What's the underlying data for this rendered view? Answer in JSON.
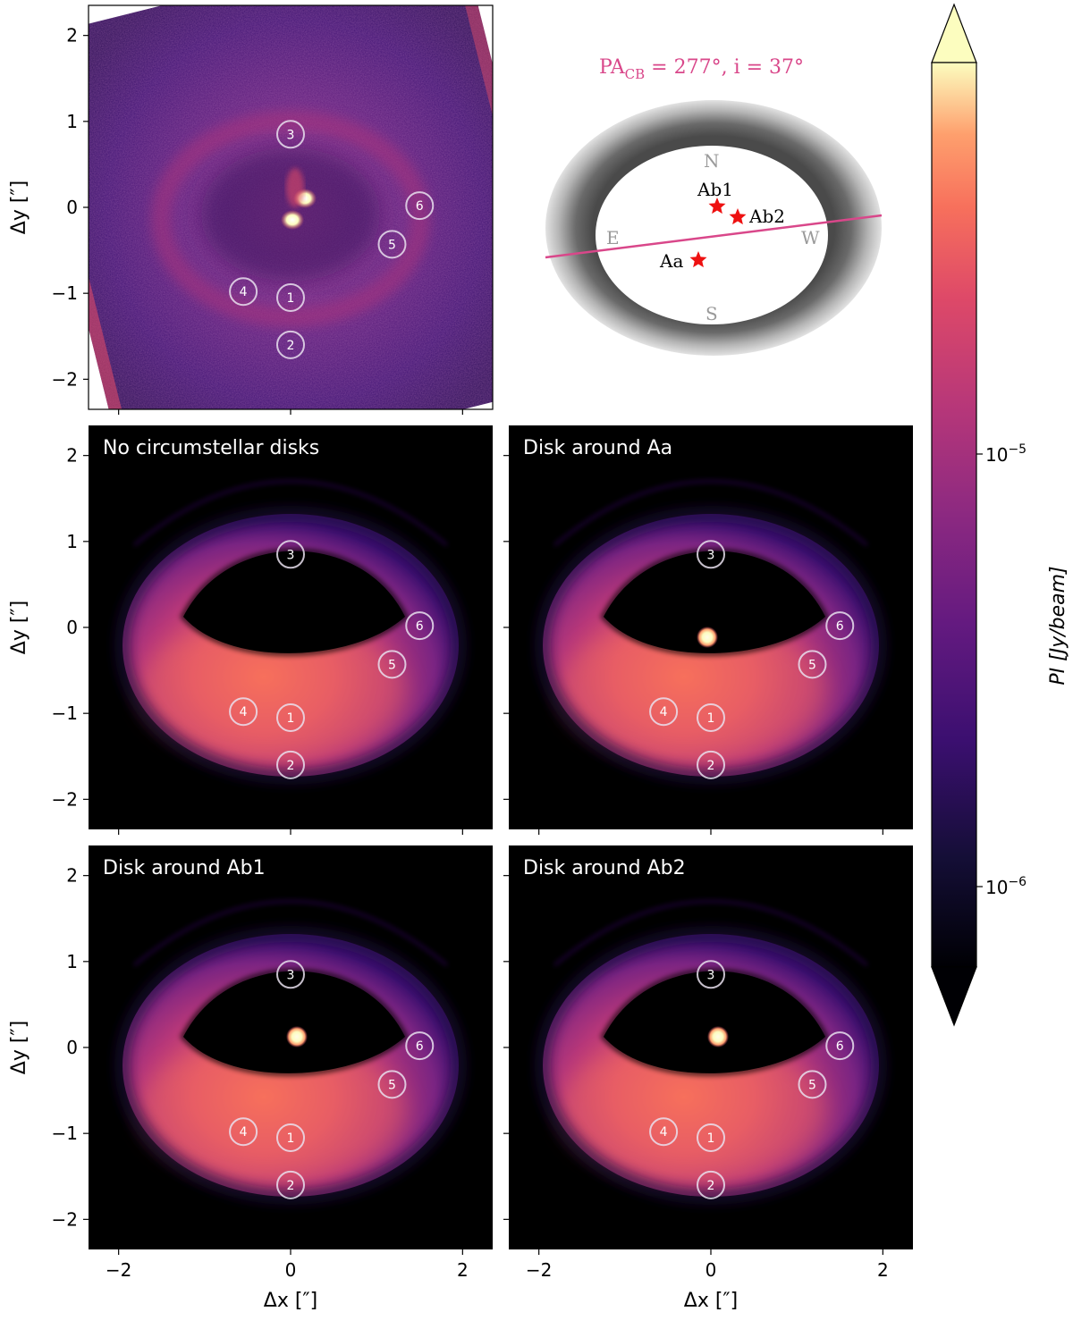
{
  "axes": {
    "x_label": "Δx [″]",
    "y_label": "Δy [″]",
    "x_ticks": [
      "−2",
      "0",
      "2"
    ],
    "y_ticks": [
      "2",
      "1",
      "0",
      "−1",
      "−2"
    ],
    "range": [
      -2.35,
      2.35
    ]
  },
  "panels": {
    "observed": {
      "title": ""
    },
    "model_none": {
      "title": "No circumstellar disks"
    },
    "model_aa": {
      "title": "Disk around Aa"
    },
    "model_ab1": {
      "title": "Disk around Ab1"
    },
    "model_ab2": {
      "title": "Disk around Ab2"
    }
  },
  "markers": [
    {
      "label": "1",
      "x": 0.0,
      "y": -1.05
    },
    {
      "label": "2",
      "x": 0.0,
      "y": -1.6
    },
    {
      "label": "3",
      "x": 0.0,
      "y": 0.85
    },
    {
      "label": "4",
      "x": -0.55,
      "y": -0.98
    },
    {
      "label": "5",
      "x": 1.18,
      "y": -0.43
    },
    {
      "label": "6",
      "x": 1.5,
      "y": 0.02
    }
  ],
  "schematic": {
    "pa_label": "PA",
    "pa_sub": "CB",
    "pa_rest": " = 277°, i = 37°",
    "compass": {
      "n": "N",
      "s": "S",
      "e": "E",
      "w": "W"
    },
    "stars": [
      {
        "name": "Ab1"
      },
      {
        "name": "Ab2"
      },
      {
        "name": "Aa"
      }
    ],
    "pa_color": "#d9478a",
    "star_color": "#ee1111"
  },
  "colorbar": {
    "label": "PI [Jy/beam]",
    "ticks": [
      {
        "base": "10",
        "exp": "−5"
      },
      {
        "base": "10",
        "exp": "−6"
      }
    ],
    "colormap": "magma",
    "scale": "log"
  }
}
